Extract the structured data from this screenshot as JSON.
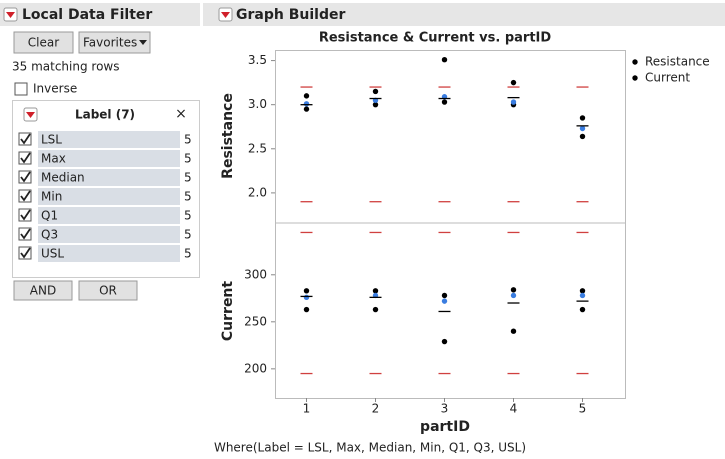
{
  "filter_panel": {
    "title": "Local Data Filter",
    "buttons": [
      "Clear",
      "Favorites"
    ],
    "status": "35 matching rows",
    "inverse": "Inverse",
    "list_title": "Label (7)",
    "items": [
      {
        "label": "LSL",
        "count": 5
      },
      {
        "label": "Max",
        "count": 5
      },
      {
        "label": "Median",
        "count": 5
      },
      {
        "label": "Min",
        "count": 5
      },
      {
        "label": "Q1",
        "count": 5
      },
      {
        "label": "Q3",
        "count": 5
      },
      {
        "label": "USL",
        "count": 5
      }
    ],
    "logic_buttons": [
      "AND",
      "OR"
    ]
  },
  "graph_builder": {
    "title": "Graph Builder",
    "where": "Where(Label = LSL, Max, Median, Min, Q1, Q3, USL)"
  },
  "chart_data": [
    {
      "type": "scatter",
      "title": "Resistance & Current vs. partID",
      "y_label": "Resistance",
      "categories": [
        "1",
        "2",
        "3",
        "4",
        "5"
      ],
      "ylim": [
        1.67,
        3.62
      ],
      "yticks": [
        {
          "value": 2,
          "label": "2.0"
        },
        2.5,
        {
          "value": 3,
          "label": "3.0"
        },
        3.5
      ],
      "grid": false,
      "series": [
        {
          "color": "#d0403f",
          "marker": "dash",
          "values": [
            3.2,
            3.2,
            3.2,
            3.2,
            3.2
          ]
        },
        {
          "color": "#d0403f",
          "marker": "dash",
          "values": [
            1.9,
            1.9,
            1.9,
            1.9,
            1.9
          ]
        },
        {
          "color": "#000000",
          "marker": "dot",
          "values": [
            3.1,
            3.15,
            3.51,
            3.25,
            2.85
          ]
        },
        {
          "color": "#000000",
          "marker": "dot",
          "values": [
            2.95,
            3.0,
            3.03,
            3.0,
            2.64
          ]
        },
        {
          "color": "#3a7de0",
          "marker": "dot",
          "values": [
            3.01,
            3.05,
            3.09,
            3.03,
            2.73
          ]
        },
        {
          "color": "#000000",
          "marker": "dash",
          "values": [
            3.0,
            3.07,
            3.07,
            3.08,
            2.76
          ]
        }
      ]
    },
    {
      "type": "scatter",
      "y_label": "Current",
      "x_label": "partID",
      "categories": [
        "1",
        "2",
        "3",
        "4",
        "5"
      ],
      "ylim": [
        169,
        354
      ],
      "yticks": [
        200,
        250,
        300
      ],
      "grid": false,
      "series": [
        {
          "color": "#d0403f",
          "marker": "dash",
          "values": [
            345,
            345,
            345,
            345,
            345
          ]
        },
        {
          "color": "#d0403f",
          "marker": "dash",
          "values": [
            195,
            195,
            195,
            195,
            195
          ]
        },
        {
          "color": "#000000",
          "marker": "dot",
          "values": [
            283,
            283,
            278,
            284,
            283
          ]
        },
        {
          "color": "#000000",
          "marker": "dot",
          "values": [
            263,
            263,
            229,
            240,
            263
          ]
        },
        {
          "color": "#3a7de0",
          "marker": "dot",
          "values": [
            276,
            278,
            272,
            278,
            278
          ]
        },
        {
          "color": "#000000",
          "marker": "dash",
          "values": [
            277,
            276,
            261,
            270,
            272
          ]
        }
      ]
    }
  ]
}
